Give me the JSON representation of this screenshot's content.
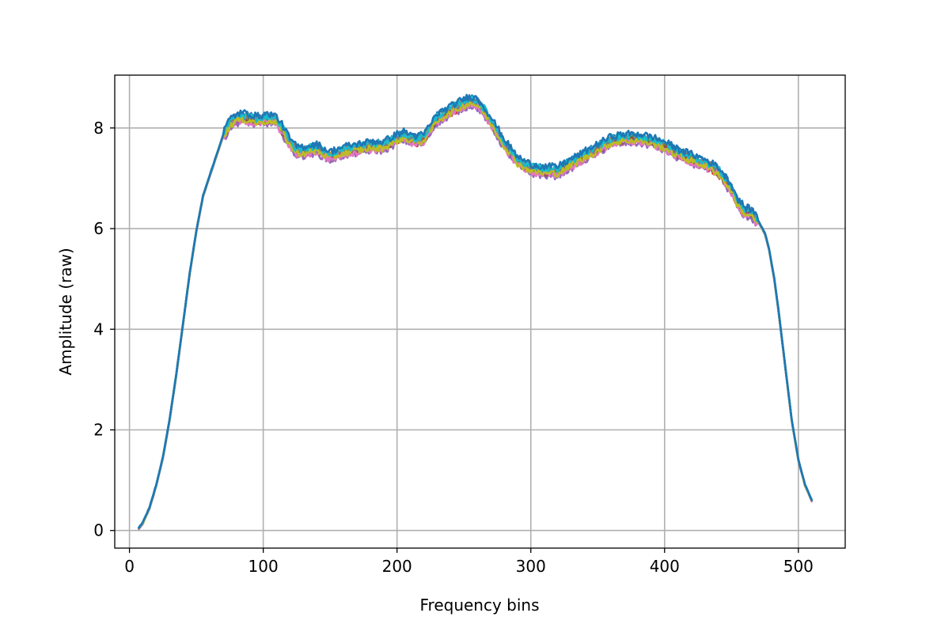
{
  "chart_data": {
    "type": "line",
    "title": "",
    "xlabel": "Frequency bins",
    "ylabel": "Amplitude (raw)",
    "xlim": [
      -11,
      535
    ],
    "ylim": [
      -0.35,
      9.05
    ],
    "grid": true,
    "legend": "none",
    "xticks": [
      0,
      100,
      200,
      300,
      400,
      500
    ],
    "xtick_labels": [
      "0",
      "100",
      "200",
      "300",
      "400",
      "500"
    ],
    "yticks": [
      0,
      2,
      4,
      6,
      8
    ],
    "ytick_labels": [
      "0",
      "2",
      "4",
      "6",
      "8"
    ],
    "envelope": {
      "x": [
        7,
        10,
        15,
        20,
        25,
        30,
        35,
        40,
        45,
        50,
        55,
        60,
        65,
        70,
        75,
        80,
        85,
        90,
        95,
        100,
        105,
        110,
        115,
        120,
        125,
        130,
        140,
        150,
        160,
        170,
        180,
        190,
        200,
        205,
        210,
        215,
        220,
        225,
        230,
        240,
        250,
        255,
        260,
        265,
        270,
        280,
        290,
        300,
        310,
        320,
        330,
        340,
        350,
        360,
        370,
        380,
        390,
        400,
        410,
        420,
        430,
        440,
        450,
        455,
        460,
        465,
        470,
        475,
        478,
        482,
        485,
        490,
        495,
        500,
        505,
        510
      ],
      "y": [
        0.05,
        0.15,
        0.45,
        0.9,
        1.45,
        2.2,
        3.1,
        4.1,
        5.1,
        5.95,
        6.65,
        7.05,
        7.45,
        7.85,
        8.1,
        8.2,
        8.22,
        8.2,
        8.15,
        8.18,
        8.2,
        8.15,
        7.95,
        7.7,
        7.55,
        7.55,
        7.6,
        7.45,
        7.55,
        7.6,
        7.65,
        7.65,
        7.8,
        7.85,
        7.8,
        7.75,
        7.8,
        8.0,
        8.2,
        8.35,
        8.5,
        8.55,
        8.5,
        8.35,
        8.15,
        7.7,
        7.35,
        7.2,
        7.15,
        7.15,
        7.3,
        7.45,
        7.6,
        7.75,
        7.8,
        7.8,
        7.75,
        7.65,
        7.5,
        7.4,
        7.3,
        7.15,
        6.8,
        6.5,
        6.35,
        6.3,
        6.15,
        5.9,
        5.6,
        5.0,
        4.4,
        3.3,
        2.2,
        1.4,
        0.9,
        0.6
      ]
    },
    "series": [
      {
        "color": "#1f77b4",
        "offset": 0.05
      },
      {
        "color": "#ff7f0e",
        "offset": 0.0
      },
      {
        "color": "#2ca02c",
        "offset": -0.02
      },
      {
        "color": "#d62728",
        "offset": -0.06
      },
      {
        "color": "#9467bd",
        "offset": -0.1
      },
      {
        "color": "#8c564b",
        "offset": -0.04
      },
      {
        "color": "#e377c2",
        "offset": -0.08
      },
      {
        "color": "#7f7f7f",
        "offset": 0.02
      },
      {
        "color": "#bcbd22",
        "offset": -0.05
      },
      {
        "color": "#17becf",
        "offset": 0.04
      },
      {
        "color": "#1f77b4",
        "offset": 0.08
      }
    ]
  }
}
